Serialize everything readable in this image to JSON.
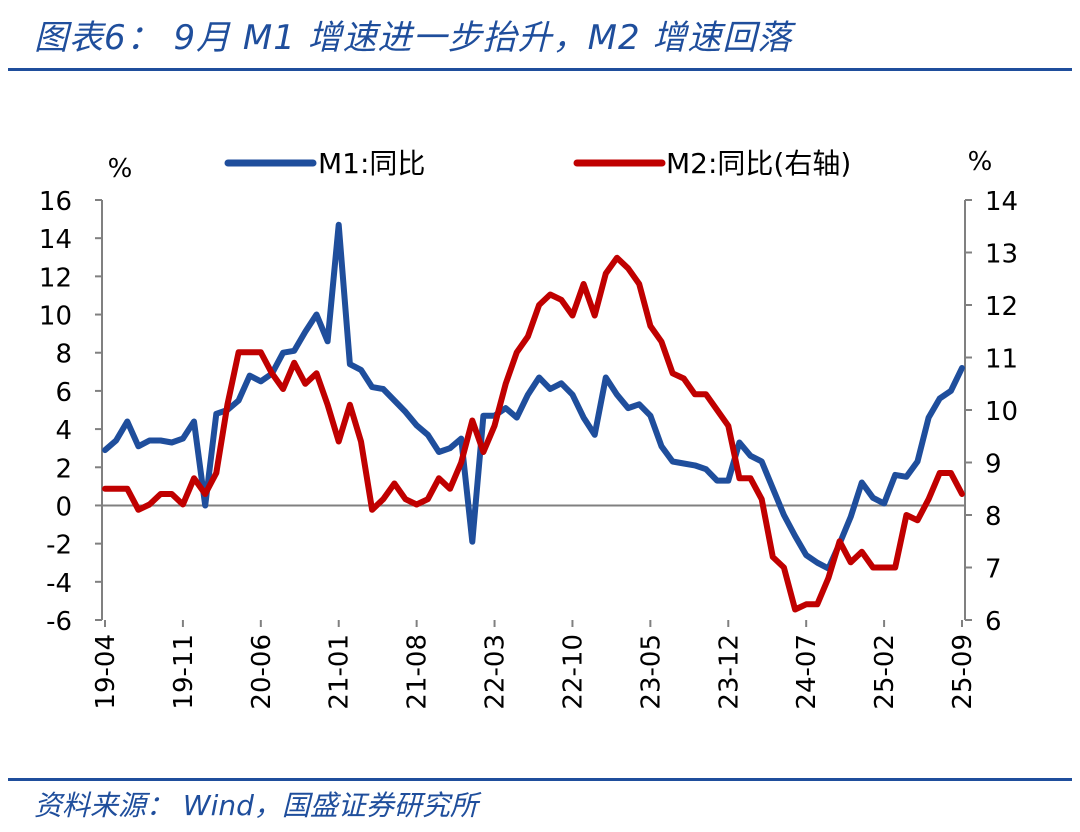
{
  "figure": {
    "title": "图表6：  9月 M1 增速进一步抬升，M2 增速回落",
    "source": "资料来源：  Wind，国盛证券研究所"
  },
  "chart_data": {
    "type": "line",
    "left_unit": "%",
    "right_unit": "%",
    "legend_position": "top",
    "grid": false,
    "y_left": {
      "min": -6,
      "max": 16,
      "ticks": [
        "16",
        "14",
        "12",
        "10",
        "8",
        "6",
        "4",
        "2",
        "0",
        "-2",
        "-4",
        "-6"
      ]
    },
    "y_right": {
      "min": 6,
      "max": 14,
      "ticks": [
        "14",
        "13",
        "12",
        "11",
        "10",
        "9",
        "8",
        "7",
        "6"
      ]
    },
    "x_tick_labels": [
      "19-04",
      "19-11",
      "20-06",
      "21-01",
      "21-08",
      "22-03",
      "22-10",
      "23-05",
      "23-12",
      "24-07",
      "25-02",
      "25-09"
    ],
    "x": [
      "2019-04",
      "2019-05",
      "2019-06",
      "2019-07",
      "2019-08",
      "2019-09",
      "2019-10",
      "2019-11",
      "2019-12",
      "2020-01",
      "2020-02",
      "2020-03",
      "2020-04",
      "2020-05",
      "2020-06",
      "2020-07",
      "2020-08",
      "2020-09",
      "2020-10",
      "2020-11",
      "2020-12",
      "2021-01",
      "2021-02",
      "2021-03",
      "2021-04",
      "2021-05",
      "2021-06",
      "2021-07",
      "2021-08",
      "2021-09",
      "2021-10",
      "2021-11",
      "2021-12",
      "2022-01",
      "2022-02",
      "2022-03",
      "2022-04",
      "2022-05",
      "2022-06",
      "2022-07",
      "2022-08",
      "2022-09",
      "2022-10",
      "2022-11",
      "2022-12",
      "2023-01",
      "2023-02",
      "2023-03",
      "2023-04",
      "2023-05",
      "2023-06",
      "2023-07",
      "2023-08",
      "2023-09",
      "2023-10",
      "2023-11",
      "2023-12",
      "2024-01",
      "2024-02",
      "2024-03",
      "2024-04",
      "2024-05",
      "2024-06",
      "2024-07",
      "2024-08",
      "2024-09",
      "2024-10",
      "2024-11",
      "2024-12",
      "2025-01",
      "2025-02",
      "2025-03",
      "2025-04",
      "2025-05",
      "2025-06",
      "2025-07",
      "2025-08",
      "2025-09"
    ],
    "series": [
      {
        "name": "M1:同比",
        "axis": "left",
        "color": "#1f4e9c",
        "values": [
          2.9,
          3.4,
          4.4,
          3.1,
          3.4,
          3.4,
          3.3,
          3.5,
          4.4,
          0.0,
          4.8,
          5.0,
          5.5,
          6.8,
          6.5,
          6.9,
          8.0,
          8.1,
          9.1,
          10.0,
          8.6,
          14.7,
          7.4,
          7.1,
          6.2,
          6.1,
          5.5,
          4.9,
          4.2,
          3.7,
          2.8,
          3.0,
          3.5,
          -1.9,
          4.7,
          4.7,
          5.1,
          4.6,
          5.8,
          6.7,
          6.1,
          6.4,
          5.8,
          4.6,
          3.7,
          6.7,
          5.8,
          5.1,
          5.3,
          4.7,
          3.1,
          2.3,
          2.2,
          2.1,
          1.9,
          1.3,
          1.3,
          3.3,
          2.6,
          2.3,
          0.9,
          -0.5,
          -1.6,
          -2.6,
          -3.0,
          -3.3,
          -2.0,
          -0.6,
          1.2,
          0.4,
          0.1,
          1.6,
          1.5,
          2.3,
          4.6,
          5.6,
          6.0,
          7.2
        ]
      },
      {
        "name": "M2:同比(右轴)",
        "axis": "right",
        "color": "#c00000",
        "values": [
          8.5,
          8.5,
          8.5,
          8.1,
          8.2,
          8.4,
          8.4,
          8.2,
          8.7,
          8.4,
          8.8,
          10.1,
          11.1,
          11.1,
          11.1,
          10.7,
          10.4,
          10.9,
          10.5,
          10.7,
          10.1,
          9.4,
          10.1,
          9.4,
          8.1,
          8.3,
          8.6,
          8.3,
          8.2,
          8.3,
          8.7,
          8.5,
          9.0,
          9.8,
          9.2,
          9.7,
          10.5,
          11.1,
          11.4,
          12.0,
          12.2,
          12.1,
          11.8,
          12.4,
          11.8,
          12.6,
          12.9,
          12.7,
          12.4,
          11.6,
          11.3,
          10.7,
          10.6,
          10.3,
          10.3,
          10.0,
          9.7,
          8.7,
          8.7,
          8.3,
          7.2,
          7.0,
          6.2,
          6.3,
          6.3,
          6.8,
          7.5,
          7.1,
          7.3,
          7.0,
          7.0,
          7.0,
          8.0,
          7.9,
          8.3,
          8.8,
          8.8,
          8.4
        ]
      }
    ]
  }
}
